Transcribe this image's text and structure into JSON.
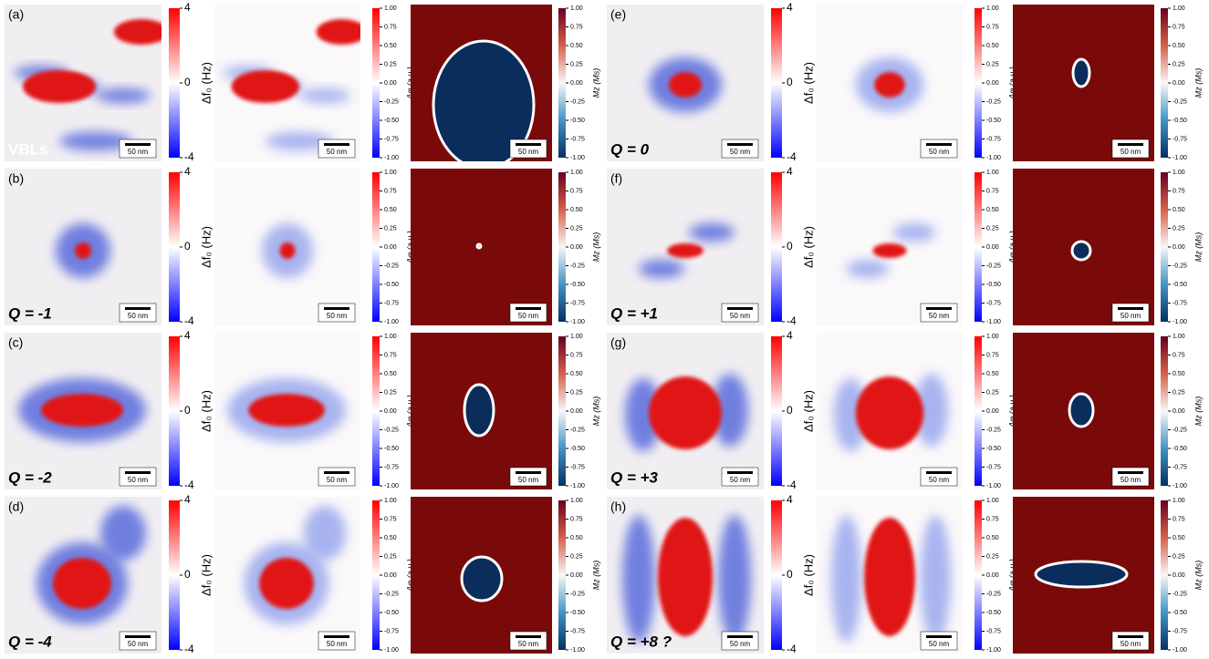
{
  "scale_bar": "50 nm",
  "colorbars": {
    "df": {
      "label": "Δf₀ (Hz)",
      "ticks": [
        "4",
        "0",
        "-4"
      ]
    },
    "phase": {
      "label": "Δφ (a.u.)",
      "ticks": [
        "1.00",
        "0.75",
        "0.50",
        "0.25",
        "0.00",
        "-0.25",
        "-0.50",
        "-0.75",
        "-1.00"
      ]
    },
    "mz": {
      "label": "Mz (Ms)",
      "ticks": [
        "1.00",
        "0.75",
        "0.50",
        "0.25",
        "0.00",
        "-0.25",
        "-0.50",
        "-0.75",
        "-1.00"
      ]
    }
  },
  "rows": [
    {
      "panel": "(a)",
      "label": "VBLs"
    },
    {
      "panel": "(b)",
      "label": "Q = -1"
    },
    {
      "panel": "(c)",
      "label": "Q = -2"
    },
    {
      "panel": "(d)",
      "label": "Q = -4"
    },
    {
      "panel": "(e)",
      "label": "Q = 0"
    },
    {
      "panel": "(f)",
      "label": "Q = +1"
    },
    {
      "panel": "(g)",
      "label": "Q = +3"
    },
    {
      "panel": "(h)",
      "label": "Q = +8 ?"
    }
  ]
}
